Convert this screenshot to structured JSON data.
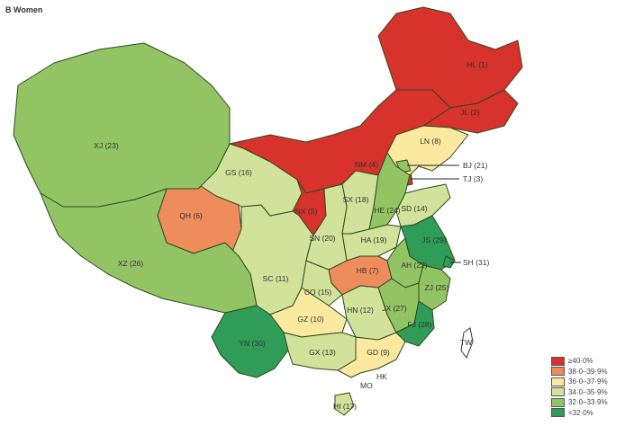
{
  "title": "B  Women",
  "colors": {
    "c1": "#d7322b",
    "c2": "#ef8c5c",
    "c3": "#fbe9a0",
    "c4": "#d2e29a",
    "c5": "#93c464",
    "c6": "#2f9d57"
  },
  "legend": [
    {
      "label": "≥40·0%",
      "color": "#d7322b"
    },
    {
      "label": "38·0–39·9%",
      "color": "#ef8c5c"
    },
    {
      "label": "36·0–37·9%",
      "color": "#fbe9a0"
    },
    {
      "label": "34·0–35·9%",
      "color": "#d2e29a"
    },
    {
      "label": "32·0–33·9%",
      "color": "#93c464"
    },
    {
      "label": "<32·0%",
      "color": "#2f9d57"
    }
  ],
  "provinces": [
    {
      "code": "HL",
      "label": "HL (1)",
      "cat": "c1"
    },
    {
      "code": "JL",
      "label": "JL (2)",
      "cat": "c1"
    },
    {
      "code": "TJ",
      "label": "TJ (3)",
      "cat": "c1"
    },
    {
      "code": "NM",
      "label": "NM (4)",
      "cat": "c1"
    },
    {
      "code": "NX",
      "label": "NX (5)",
      "cat": "c1"
    },
    {
      "code": "QH",
      "label": "QH (6)",
      "cat": "c2"
    },
    {
      "code": "HB",
      "label": "HB (7)",
      "cat": "c2"
    },
    {
      "code": "LN",
      "label": "LN (8)",
      "cat": "c3"
    },
    {
      "code": "GD",
      "label": "GD (9)",
      "cat": "c3"
    },
    {
      "code": "GZ",
      "label": "GZ (10)",
      "cat": "c3"
    },
    {
      "code": "SC",
      "label": "SC (11)",
      "cat": "c4"
    },
    {
      "code": "HN",
      "label": "HN (12)",
      "cat": "c4"
    },
    {
      "code": "GX",
      "label": "GX (13)",
      "cat": "c4"
    },
    {
      "code": "SD",
      "label": "SD (14)",
      "cat": "c4"
    },
    {
      "code": "CQ",
      "label": "CQ (15)",
      "cat": "c4"
    },
    {
      "code": "GS",
      "label": "GS (16)",
      "cat": "c4"
    },
    {
      "code": "HI",
      "label": "HI (17)",
      "cat": "c4"
    },
    {
      "code": "SX",
      "label": "SX (18)",
      "cat": "c4"
    },
    {
      "code": "HA",
      "label": "HA (19)",
      "cat": "c4"
    },
    {
      "code": "SN",
      "label": "SN (20)",
      "cat": "c4"
    },
    {
      "code": "BJ",
      "label": "BJ (21)",
      "cat": "c5"
    },
    {
      "code": "AH",
      "label": "AH (22)",
      "cat": "c5"
    },
    {
      "code": "XJ",
      "label": "XJ (23)",
      "cat": "c5"
    },
    {
      "code": "HE",
      "label": "HE (24)",
      "cat": "c5"
    },
    {
      "code": "ZJ",
      "label": "ZJ (25)",
      "cat": "c5"
    },
    {
      "code": "XZ",
      "label": "XZ (26)",
      "cat": "c5"
    },
    {
      "code": "JX",
      "label": "JX (27)",
      "cat": "c5"
    },
    {
      "code": "FJ",
      "label": "FJ (28)",
      "cat": "c6"
    },
    {
      "code": "JS",
      "label": "JS (29)",
      "cat": "c6"
    },
    {
      "code": "YN",
      "label": "YN (30)",
      "cat": "c6"
    },
    {
      "code": "SH",
      "label": "SH (31)",
      "cat": "c6"
    }
  ],
  "other_labels": [
    "TW",
    "HK",
    "MO"
  ]
}
